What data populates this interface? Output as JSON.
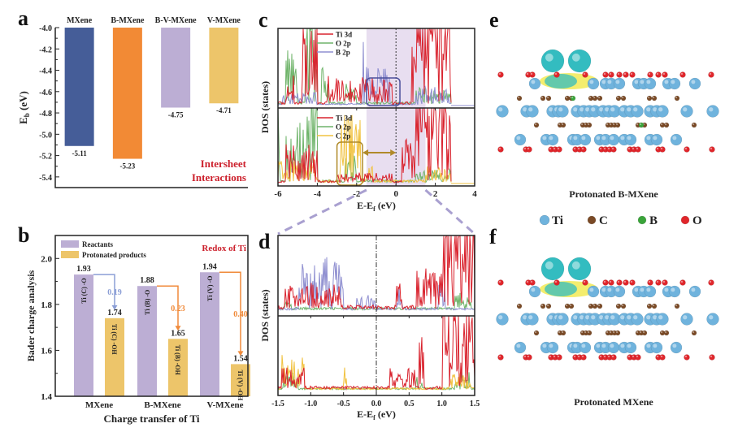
{
  "figure": {
    "panel_letters": [
      "a",
      "b",
      "c",
      "d",
      "e",
      "f"
    ]
  },
  "chart_data": [
    {
      "id": "a",
      "type": "bar",
      "title": "",
      "categories": [
        "MXene",
        "B-MXene",
        "B-V-MXene",
        "V-MXene"
      ],
      "values": [
        -5.11,
        -5.23,
        -4.75,
        -4.71
      ],
      "value_labels": [
        "-5.11",
        "-5.23",
        "-4.75",
        "-4.71"
      ],
      "colors": [
        "#455d98",
        "#f28a35",
        "#bcaed4",
        "#edc56a"
      ],
      "ylabel": "E",
      "ylabel_sub": "b",
      "ylabel_unit": " (eV)",
      "ylim": [
        -5.5,
        -4.0
      ],
      "yticks": [
        -4.0,
        -4.2,
        -4.4,
        -4.6,
        -4.8,
        -5.0,
        -5.2,
        -5.4
      ],
      "ytick_labels": [
        "-4.0",
        "-4.2",
        "-4.4",
        "-4.6",
        "-4.8",
        "-5.0",
        "-5.2",
        "-5.4"
      ],
      "annotation": [
        "Intersheet",
        "Interactions"
      ],
      "annotation_color": "#cc1f2b",
      "category_labels_position": "top"
    },
    {
      "id": "b",
      "type": "bar",
      "categories": [
        "MXene",
        "B-MXene",
        "V-MXene"
      ],
      "series": [
        {
          "name": "Reactants",
          "color": "#bcaed4",
          "values": [
            1.93,
            1.88,
            1.94
          ],
          "value_labels": [
            "1.93",
            "1.88",
            "1.94"
          ],
          "bar_labels": [
            "Ti (C) -O",
            "Ti (B) -O",
            "Ti (V) -O"
          ]
        },
        {
          "name": "Protonated products",
          "color": "#edc56a",
          "values": [
            1.74,
            1.65,
            1.54
          ],
          "value_labels": [
            "1.74",
            "1.65",
            "1.54"
          ],
          "bar_labels": [
            "Ti (C) -OH",
            "Ti (B) -OH",
            "Ti (V) -OH"
          ]
        }
      ],
      "transfers": [
        {
          "value": "0.19",
          "color": "#8c9fd6"
        },
        {
          "value": "0.23",
          "color": "#f08a3a"
        },
        {
          "value": "0.40",
          "color": "#f08a3a"
        }
      ],
      "xlabel": "Charge transfer of Ti",
      "ylabel": "Bader charge analysis",
      "ylim": [
        1.4,
        2.1
      ],
      "yticks": [
        1.4,
        1.6,
        1.8,
        2.0
      ],
      "ytick_labels": [
        "1.4",
        "1.6",
        "1.8",
        "2.0"
      ],
      "annotation": "Redox of Ti",
      "annotation_color": "#cc1f2b",
      "legend_position": "top-left"
    },
    {
      "id": "c",
      "type": "line",
      "xlabel": "E-E",
      "xlabel_sub": "f",
      "xlabel_unit": " (eV)",
      "ylabel": "DOS (states)",
      "xlim": [
        -6,
        4
      ],
      "xticks": [
        -6,
        -4,
        -2,
        0,
        2,
        4
      ],
      "xtick_labels": [
        "-6",
        "-4",
        "-2",
        "0",
        "2",
        "4"
      ],
      "highlight_region": [
        -1.5,
        1.5
      ],
      "highlight_color": "#e8def0",
      "fermi_level": 0,
      "panels": [
        {
          "legend": [
            {
              "name": "Ti 3d",
              "color": "#d9232e"
            },
            {
              "name": "O 2p",
              "color": "#6fb46a"
            },
            {
              "name": "B 2p",
              "color": "#8f8fd0"
            }
          ],
          "box": {
            "x": [
              -1.5,
              0.2
            ],
            "color": "#4a4f9a"
          }
        },
        {
          "legend": [
            {
              "name": "Ti 3d",
              "color": "#d9232e"
            },
            {
              "name": "O 2p",
              "color": "#6fb46a"
            },
            {
              "name": "C 2p",
              "color": "#f1c240"
            }
          ],
          "box": {
            "x": [
              -3.0,
              -1.7
            ],
            "color": "#b08a2a"
          },
          "double_arrow": {
            "x": [
              -1.7,
              0
            ],
            "color": "#b08a2a"
          }
        }
      ]
    },
    {
      "id": "d",
      "type": "line",
      "xlabel": "E-E",
      "xlabel_sub": "f",
      "xlabel_unit": " (eV)",
      "ylabel": "DOS (states)",
      "xlim": [
        -1.5,
        1.5
      ],
      "xticks": [
        -1.5,
        -1.0,
        -0.5,
        0.0,
        0.5,
        1.0,
        1.5
      ],
      "xtick_labels": [
        "-1.5",
        "-1.0",
        "-0.5",
        "0.0",
        "0.5",
        "1.0",
        "1.5"
      ],
      "fermi_level": 0,
      "panels": [
        {
          "series": [
            "Ti 3d",
            "O 2p",
            "B 2p"
          ]
        },
        {
          "series": [
            "Ti 3d",
            "O 2p",
            "C 2p"
          ]
        }
      ]
    }
  ],
  "structures": {
    "e": {
      "caption": "Protonated B-MXene"
    },
    "f": {
      "caption": "Protonated MXene"
    },
    "legend": [
      {
        "name": "Ti",
        "color": "#6fb3dd"
      },
      {
        "name": "C",
        "color": "#7a4a26"
      },
      {
        "name": "B",
        "color": "#3aa43a"
      },
      {
        "name": "O",
        "color": "#e0262b"
      }
    ],
    "isosurface_colors": {
      "depletion": "#33bcc0",
      "accumulation": "#f1e84a"
    }
  }
}
